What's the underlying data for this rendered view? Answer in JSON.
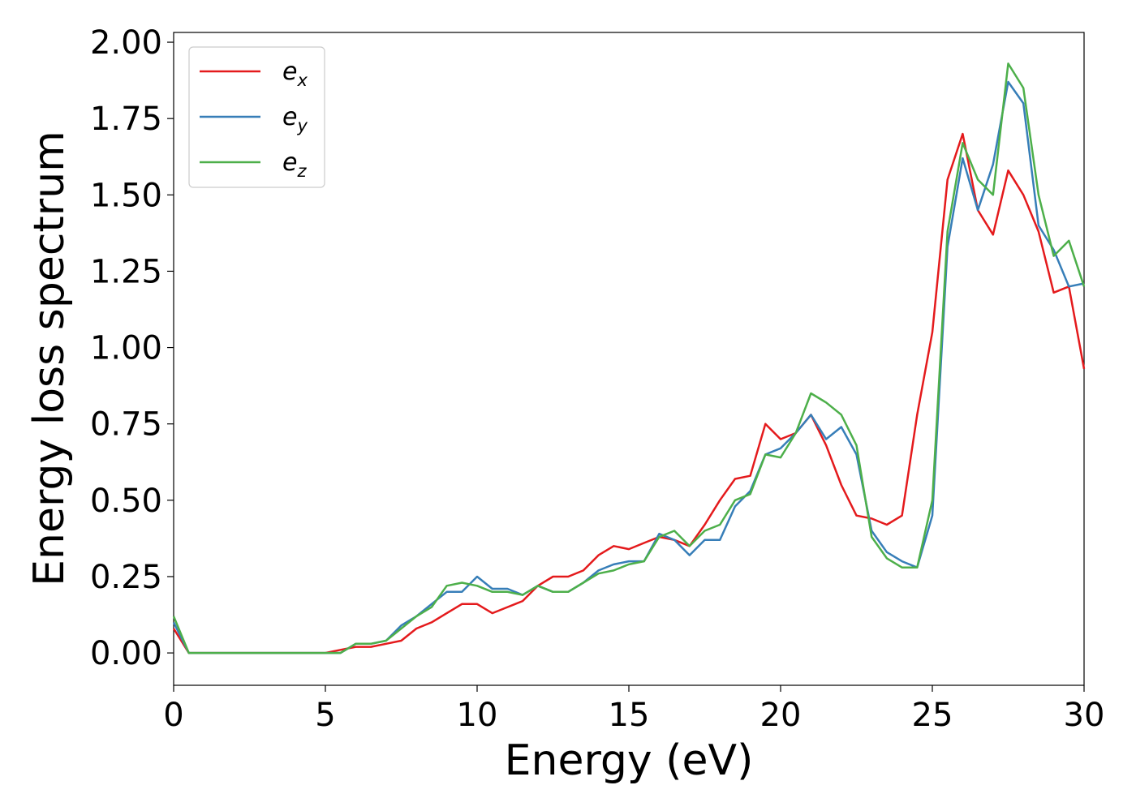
{
  "chart_data": {
    "type": "line",
    "xlabel": "Energy (eV)",
    "ylabel": "Energy loss spectrum",
    "x": [
      0,
      0.5,
      1,
      1.5,
      2,
      2.5,
      3,
      3.5,
      4,
      4.5,
      5,
      5.5,
      6,
      6.5,
      7,
      7.5,
      8,
      8.5,
      9,
      9.5,
      10,
      10.5,
      11,
      11.5,
      12,
      12.5,
      13,
      13.5,
      14,
      14.5,
      15,
      15.5,
      16,
      16.5,
      17,
      17.5,
      18,
      18.5,
      19,
      19.5,
      20,
      20.5,
      21,
      21.5,
      22,
      22.5,
      23,
      23.5,
      24,
      24.5,
      25,
      25.5,
      26,
      26.5,
      27,
      27.5,
      28,
      28.5,
      29,
      29.5,
      30
    ],
    "series": [
      {
        "name": "ex",
        "color": "#e41a1c",
        "values": [
          0.08,
          0,
          0,
          0,
          0,
          0,
          0,
          0,
          0,
          0,
          0,
          0.01,
          0.02,
          0.02,
          0.03,
          0.04,
          0.08,
          0.1,
          0.13,
          0.16,
          0.16,
          0.13,
          0.15,
          0.17,
          0.22,
          0.25,
          0.25,
          0.27,
          0.32,
          0.35,
          0.34,
          0.36,
          0.38,
          0.37,
          0.35,
          0.42,
          0.5,
          0.57,
          0.58,
          0.75,
          0.7,
          0.72,
          0.78,
          0.68,
          0.55,
          0.45,
          0.44,
          0.42,
          0.45,
          0.78,
          1.05,
          1.55,
          1.7,
          1.45,
          1.37,
          1.58,
          1.5,
          1.38,
          1.18,
          1.2,
          0.93
        ]
      },
      {
        "name": "ey",
        "color": "#377eb8",
        "values": [
          0.1,
          0,
          0,
          0,
          0,
          0,
          0,
          0,
          0,
          0,
          0,
          0,
          0.03,
          0.03,
          0.04,
          0.09,
          0.12,
          0.16,
          0.2,
          0.2,
          0.25,
          0.21,
          0.21,
          0.19,
          0.22,
          0.2,
          0.2,
          0.23,
          0.27,
          0.29,
          0.3,
          0.3,
          0.39,
          0.37,
          0.32,
          0.37,
          0.37,
          0.48,
          0.53,
          0.65,
          0.67,
          0.72,
          0.78,
          0.7,
          0.74,
          0.65,
          0.4,
          0.33,
          0.3,
          0.28,
          0.45,
          1.33,
          1.62,
          1.45,
          1.6,
          1.87,
          1.8,
          1.4,
          1.32,
          1.2,
          1.21
        ]
      },
      {
        "name": "ez",
        "color": "#4daf4a",
        "values": [
          0.12,
          0,
          0,
          0,
          0,
          0,
          0,
          0,
          0,
          0,
          0,
          0,
          0.03,
          0.03,
          0.04,
          0.08,
          0.12,
          0.15,
          0.22,
          0.23,
          0.22,
          0.2,
          0.2,
          0.19,
          0.22,
          0.2,
          0.2,
          0.23,
          0.26,
          0.27,
          0.29,
          0.3,
          0.38,
          0.4,
          0.35,
          0.4,
          0.42,
          0.5,
          0.52,
          0.65,
          0.64,
          0.72,
          0.85,
          0.82,
          0.78,
          0.68,
          0.38,
          0.31,
          0.28,
          0.28,
          0.5,
          1.38,
          1.67,
          1.55,
          1.5,
          1.93,
          1.85,
          1.5,
          1.3,
          1.35,
          1.2
        ]
      }
    ],
    "xlim": [
      0,
      30
    ],
    "xticks": [
      0,
      5,
      10,
      15,
      20,
      25,
      30
    ],
    "ylim": [
      -0.106,
      2.032
    ],
    "yticks": [
      {
        "value": 0,
        "label": "0.00"
      },
      {
        "value": 0.25,
        "label": "0.25"
      },
      {
        "value": 0.5,
        "label": "0.50"
      },
      {
        "value": 0.75,
        "label": "0.75"
      },
      {
        "value": 1,
        "label": "1.00"
      },
      {
        "value": 1.25,
        "label": "1.25"
      },
      {
        "value": 1.5,
        "label": "1.50"
      },
      {
        "value": 1.75,
        "label": "1.75"
      },
      {
        "value": 2,
        "label": "2.00"
      }
    ],
    "legend": "upper left",
    "grid": false
  }
}
